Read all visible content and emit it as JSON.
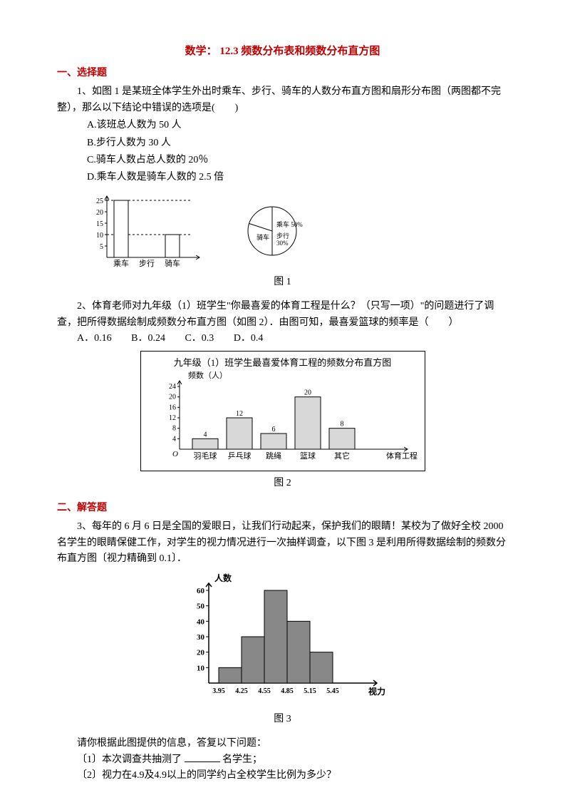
{
  "title": "数学：  12.3 频数分布表和频数分布直方图",
  "s1": {
    "heading": "一、选择题",
    "q1": {
      "text": "1、如图 1 是某班全体学生外出时乘车、步行、骑车的人数分布直方图和扇形分布图（两图都不完整），那么以下结论中错误的选项是(　　)",
      "optA": "A.该班总人数为 50 人",
      "optB": "B.步行人数为 30 人",
      "optC": "C.骑车人数占总人数的 20％",
      "optD": "D.乘车人数是骑车人数的 2.5 倍",
      "fig_label": "图 1",
      "bar": {
        "type": "bar",
        "categories": [
          "乘车",
          "步行",
          "骑车"
        ],
        "values": [
          25,
          null,
          10
        ],
        "yticks": [
          5,
          10,
          15,
          20,
          25
        ],
        "bar_color": "#ffffff",
        "stroke": "#000000",
        "width": 170,
        "height": 110
      },
      "pie": {
        "type": "pie",
        "slices": [
          {
            "label": "乘车 50%",
            "start": -90,
            "end": 90,
            "fill": "#ffffff"
          },
          {
            "label": "步行 30%",
            "start": 90,
            "end": 198,
            "fill": "#ffffff"
          },
          {
            "label": "骑车",
            "start": 198,
            "end": 270,
            "fill": "#ffffff"
          }
        ],
        "radius": 34,
        "stroke": "#000000"
      }
    },
    "q2": {
      "text": "2、体育老师对九年级（1）班学生\"你最喜爱的体育工程是什么？（只写一项）\"的问题进行了调查，把所得数据绘制成频数分布直方图（如图 2）．由图可知，最喜爱篮球的频率是（　　）",
      "optA": "A．0.16",
      "optB": "B．0.24",
      "optC": "C．0.3",
      "optD": "D．0.4",
      "fig_label": "图 2",
      "chart": {
        "type": "bar",
        "title": "九年级（1）班学生最喜爱体育工程的频数分布直方图",
        "ylabel": "频数（人）",
        "xlabel": "体育工程",
        "categories": [
          "羽毛球",
          "乒乓球",
          "跳绳",
          "篮球",
          "其它"
        ],
        "values": [
          4,
          12,
          6,
          20,
          8
        ],
        "yticks": [
          4,
          8,
          12,
          16,
          20,
          24
        ],
        "bar_fill": "#d8d8d8",
        "stroke": "#000000",
        "title_fontsize": 12
      }
    }
  },
  "s2": {
    "heading": "二、解答题",
    "q3": {
      "text": "3、每年的 6 月 6 日是全国的爱眼日，让我们行动起来，保护我们的眼睛！某校为了做好全校 2000 名学生的眼睛保健工作，对学生的视力情况进行一次抽样调查，以下图 3 是利用所得数据绘制的频数分布直方图〔视力精确到 0.1〕．",
      "fig_label": "图 3",
      "chart": {
        "type": "histogram",
        "ylabel": "人数",
        "xlabel": "视力",
        "xticks": [
          "3.95",
          "4.25",
          "4.55",
          "4.85",
          "5.15",
          "5.45"
        ],
        "values": [
          10,
          30,
          60,
          40,
          20
        ],
        "yticks": [
          10,
          20,
          30,
          40,
          50,
          60
        ],
        "bar_fill": "#888888",
        "stroke": "#000000",
        "label_weight": "bold"
      },
      "prompt": "请你根据此图提供的信息，答复以下问题：",
      "sub1_a": "〔1〕本次调查共抽测了",
      "sub1_b": "名学生；",
      "sub2": "〔2〕视力在4.9及4.9以上的同学约占全校学生比例为多少？"
    }
  }
}
